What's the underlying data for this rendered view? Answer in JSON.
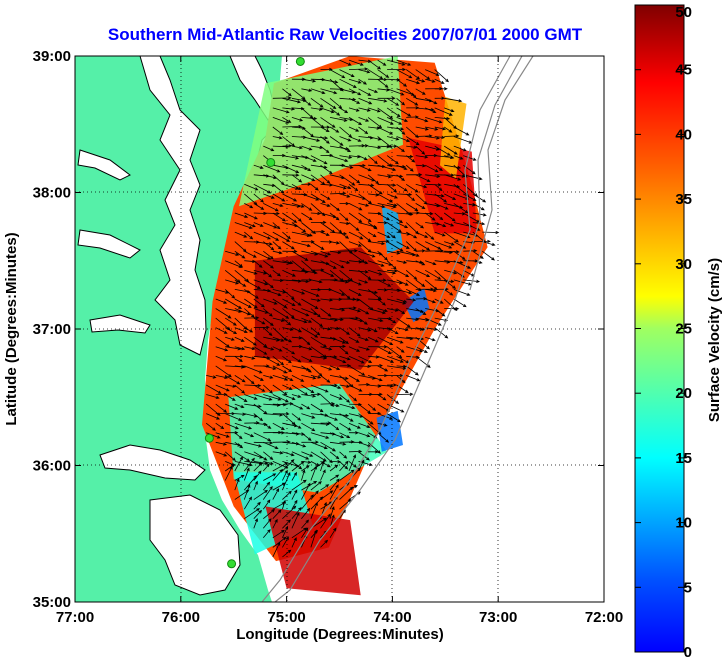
{
  "chart_data": {
    "type": "heatmap",
    "title": "Southern Mid-Atlantic Raw Velocities 2007/07/01 2000 GMT",
    "xlabel": "Longitude (Degrees:Minutes)",
    "ylabel": "Latitude (Degrees:Minutes)",
    "xlim": [
      -77,
      -72
    ],
    "ylim": [
      35,
      39
    ],
    "x_ticks": [
      {
        "value": -77,
        "label": "77:00"
      },
      {
        "value": -76,
        "label": "76:00"
      },
      {
        "value": -75,
        "label": "75:00"
      },
      {
        "value": -74,
        "label": "74:00"
      },
      {
        "value": -73,
        "label": "73:00"
      },
      {
        "value": -72,
        "label": "72:00"
      }
    ],
    "y_ticks": [
      {
        "value": 35,
        "label": "35:00"
      },
      {
        "value": 36,
        "label": "36:00"
      },
      {
        "value": 37,
        "label": "37:00"
      },
      {
        "value": 38,
        "label": "38:00"
      },
      {
        "value": 39,
        "label": "39:00"
      }
    ],
    "grid": true,
    "colorbar": {
      "label": "Surface Velocity (cm/s)",
      "min": 0,
      "max": 50,
      "ticks": [
        "0",
        "5",
        "10",
        "15",
        "20",
        "25",
        "30",
        "35",
        "40",
        "45",
        "50"
      ],
      "colormap": "jet",
      "position": "right"
    },
    "colors": {
      "land": "#55f0a8",
      "background": "#ffffff",
      "coastline": "#000000",
      "bathymetry": "#888888",
      "station": "#33dd33"
    },
    "stations_lonlat": [
      [
        -74.87,
        38.96
      ],
      [
        -75.15,
        38.22
      ],
      [
        -75.73,
        36.2
      ],
      [
        -75.52,
        35.28
      ]
    ],
    "velocity_regions": [
      {
        "speed": 40,
        "polygon": [
          [
            -75.12,
            38.8
          ],
          [
            -74.4,
            39.0
          ],
          [
            -73.6,
            38.95
          ],
          [
            -73.3,
            38.2
          ],
          [
            -73.1,
            37.6
          ],
          [
            -73.6,
            37.0
          ],
          [
            -74.1,
            36.3
          ],
          [
            -74.6,
            35.4
          ],
          [
            -75.1,
            35.3
          ],
          [
            -75.5,
            35.7
          ],
          [
            -75.8,
            36.3
          ],
          [
            -75.7,
            37.2
          ],
          [
            -75.5,
            37.9
          ],
          [
            -75.2,
            38.4
          ]
        ]
      },
      {
        "speed": 25,
        "polygon": [
          [
            -75.2,
            38.8
          ],
          [
            -73.95,
            39.0
          ],
          [
            -73.9,
            38.35
          ],
          [
            -74.7,
            38.1
          ],
          [
            -75.45,
            37.9
          ]
        ]
      },
      {
        "speed": 22,
        "polygon": [
          [
            -75.55,
            36.5
          ],
          [
            -74.5,
            36.6
          ],
          [
            -74.05,
            36.1
          ],
          [
            -74.7,
            35.8
          ],
          [
            -75.5,
            35.9
          ]
        ]
      },
      {
        "speed": 20,
        "polygon": [
          [
            -75.5,
            35.95
          ],
          [
            -74.9,
            35.95
          ],
          [
            -74.75,
            35.55
          ],
          [
            -75.3,
            35.35
          ]
        ]
      },
      {
        "speed": 15,
        "polygon": [
          [
            -74.1,
            37.9
          ],
          [
            -73.95,
            37.85
          ],
          [
            -73.9,
            37.6
          ],
          [
            -74.05,
            37.55
          ]
        ]
      },
      {
        "speed": 12,
        "polygon": [
          [
            -73.9,
            37.2
          ],
          [
            -73.7,
            37.3
          ],
          [
            -73.65,
            37.15
          ],
          [
            -73.8,
            37.05
          ]
        ]
      },
      {
        "speed": 12,
        "polygon": [
          [
            -74.15,
            36.35
          ],
          [
            -73.95,
            36.4
          ],
          [
            -73.9,
            36.15
          ],
          [
            -74.1,
            36.1
          ]
        ]
      },
      {
        "speed": 48,
        "polygon": [
          [
            -75.3,
            37.5
          ],
          [
            -74.3,
            37.6
          ],
          [
            -73.8,
            37.2
          ],
          [
            -74.3,
            36.7
          ],
          [
            -75.3,
            36.8
          ]
        ]
      },
      {
        "speed": 46,
        "polygon": [
          [
            -75.2,
            35.7
          ],
          [
            -74.4,
            35.6
          ],
          [
            -74.3,
            35.05
          ],
          [
            -75.0,
            35.1
          ]
        ]
      },
      {
        "speed": 45,
        "polygon": [
          [
            -73.85,
            38.4
          ],
          [
            -73.25,
            38.3
          ],
          [
            -73.2,
            37.7
          ],
          [
            -73.6,
            37.7
          ]
        ]
      },
      {
        "speed": 35,
        "polygon": [
          [
            -73.5,
            38.7
          ],
          [
            -73.3,
            38.65
          ],
          [
            -73.4,
            38.1
          ],
          [
            -73.55,
            38.2
          ]
        ]
      }
    ],
    "notes": "HF radar raw velocity vectors overlaid on a speed-colored field; color range 0-50 cm/s"
  }
}
